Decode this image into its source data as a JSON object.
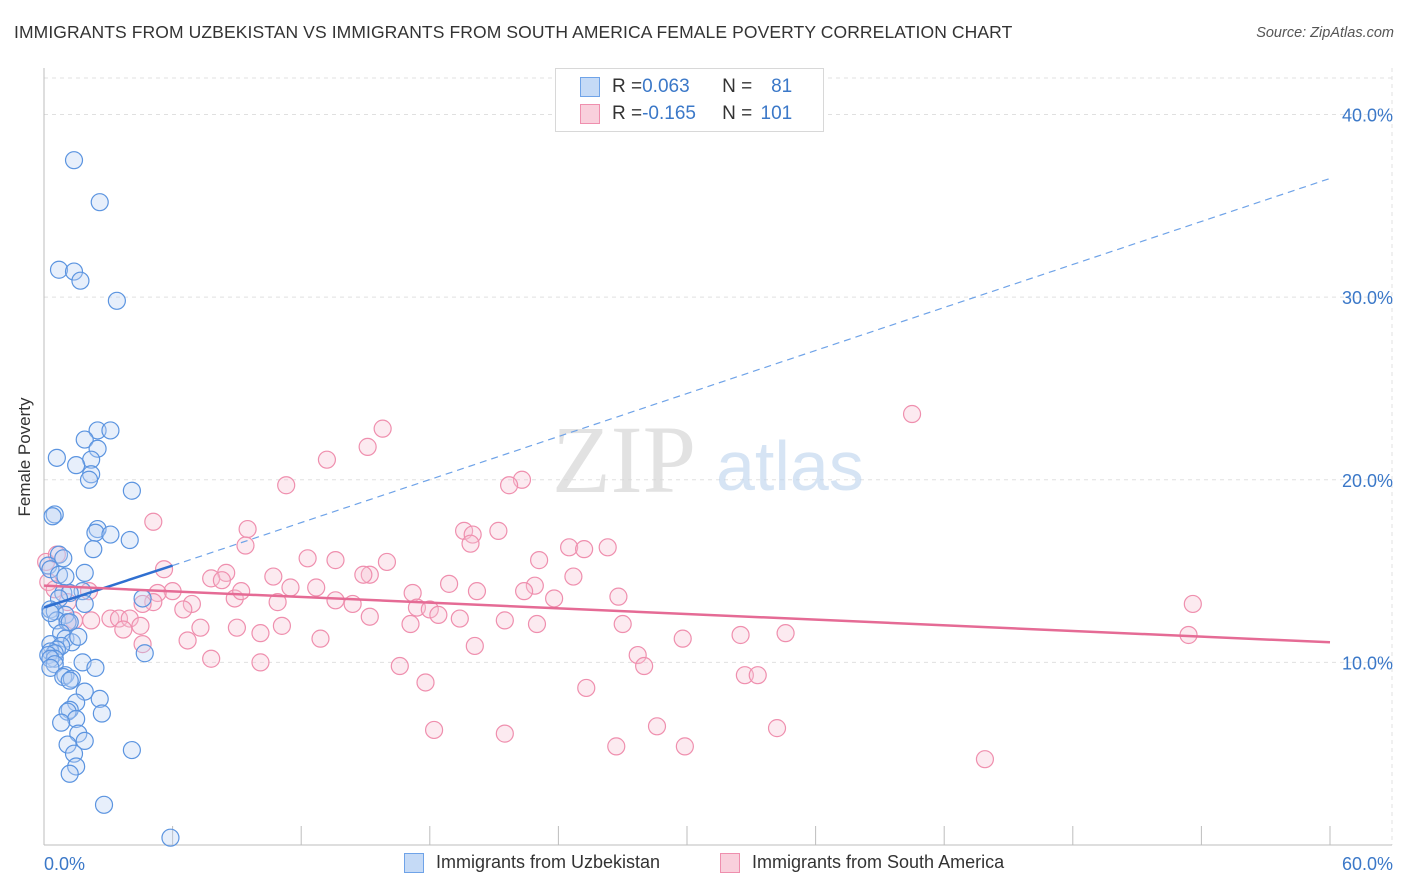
{
  "title": "IMMIGRANTS FROM UZBEKISTAN VS IMMIGRANTS FROM SOUTH AMERICA FEMALE POVERTY CORRELATION CHART",
  "source": "Source: ZipAtlas.com",
  "watermark": {
    "zip": "ZIP",
    "atlas": "atlas"
  },
  "legend": {
    "rows": [
      {
        "r_label": "R = ",
        "r_value": "0.063",
        "n_label": "N = ",
        "n_value": "81",
        "color": "#6fa3e8"
      },
      {
        "r_label": "R = ",
        "r_value": "-0.165",
        "n_label": "N = ",
        "n_value": "101",
        "color": "#ef8fae"
      }
    ]
  },
  "chart_data": {
    "type": "scatter",
    "title": "IMMIGRANTS FROM UZBEKISTAN VS IMMIGRANTS FROM SOUTH AMERICA FEMALE POVERTY CORRELATION CHART",
    "xlabel": "",
    "ylabel": "Female Poverty",
    "xlim": [
      0,
      60
    ],
    "ylim": [
      0,
      42
    ],
    "x_tick_labels": [
      "0.0%",
      "60.0%"
    ],
    "y_ticks": [
      10,
      20,
      30,
      40
    ],
    "y_tick_labels": [
      "10.0%",
      "20.0%",
      "30.0%",
      "40.0%"
    ],
    "grid": true,
    "legend_position": "top-center",
    "series": [
      {
        "name": "Immigrants from Uzbekistan",
        "color": "#6fa3e8",
        "trend": {
          "x": [
            0,
            6.0
          ],
          "y": [
            13.0,
            15.3
          ],
          "extended_to": [
            60,
            36.5
          ]
        },
        "points": [
          [
            1.4,
            37.5
          ],
          [
            2.6,
            35.2
          ],
          [
            0.7,
            31.5
          ],
          [
            1.4,
            31.4
          ],
          [
            1.7,
            30.9
          ],
          [
            3.4,
            29.8
          ],
          [
            2.5,
            22.7
          ],
          [
            3.1,
            22.7
          ],
          [
            1.9,
            22.2
          ],
          [
            2.5,
            21.7
          ],
          [
            0.6,
            21.2
          ],
          [
            2.2,
            21.1
          ],
          [
            1.5,
            20.8
          ],
          [
            2.2,
            20.3
          ],
          [
            2.1,
            20.0
          ],
          [
            4.1,
            19.4
          ],
          [
            0.5,
            18.1
          ],
          [
            0.4,
            18.0
          ],
          [
            2.5,
            17.3
          ],
          [
            2.4,
            17.1
          ],
          [
            3.1,
            17.0
          ],
          [
            4.0,
            16.7
          ],
          [
            2.3,
            16.2
          ],
          [
            0.7,
            15.9
          ],
          [
            0.9,
            15.7
          ],
          [
            0.2,
            15.3
          ],
          [
            0.3,
            15.1
          ],
          [
            1.9,
            14.9
          ],
          [
            0.7,
            14.8
          ],
          [
            1.0,
            14.7
          ],
          [
            1.8,
            13.9
          ],
          [
            0.9,
            13.8
          ],
          [
            1.2,
            13.8
          ],
          [
            0.7,
            13.5
          ],
          [
            4.6,
            13.5
          ],
          [
            1.9,
            13.2
          ],
          [
            0.3,
            12.9
          ],
          [
            0.5,
            12.8
          ],
          [
            1.0,
            12.6
          ],
          [
            0.6,
            12.3
          ],
          [
            1.1,
            12.2
          ],
          [
            1.2,
            12.2
          ],
          [
            0.8,
            11.6
          ],
          [
            1.0,
            11.3
          ],
          [
            1.3,
            11.1
          ],
          [
            0.3,
            11.0
          ],
          [
            0.8,
            10.9
          ],
          [
            0.6,
            10.7
          ],
          [
            0.3,
            10.6
          ],
          [
            0.5,
            10.5
          ],
          [
            4.7,
            10.5
          ],
          [
            0.2,
            10.4
          ],
          [
            0.5,
            10.2
          ],
          [
            0.3,
            10.2
          ],
          [
            1.8,
            10.0
          ],
          [
            0.5,
            9.9
          ],
          [
            0.3,
            9.7
          ],
          [
            2.4,
            9.7
          ],
          [
            1.0,
            9.3
          ],
          [
            0.9,
            9.2
          ],
          [
            1.3,
            9.1
          ],
          [
            1.2,
            9.0
          ],
          [
            1.9,
            8.4
          ],
          [
            2.6,
            8.0
          ],
          [
            1.5,
            7.8
          ],
          [
            1.2,
            7.4
          ],
          [
            1.1,
            7.3
          ],
          [
            2.7,
            7.2
          ],
          [
            1.5,
            6.9
          ],
          [
            0.8,
            6.7
          ],
          [
            1.6,
            6.1
          ],
          [
            1.9,
            5.7
          ],
          [
            1.1,
            5.5
          ],
          [
            4.1,
            5.2
          ],
          [
            1.4,
            5.0
          ],
          [
            1.5,
            4.3
          ],
          [
            1.2,
            3.9
          ],
          [
            2.8,
            2.2
          ],
          [
            5.9,
            0.4
          ],
          [
            0.3,
            12.7
          ],
          [
            1.6,
            11.4
          ]
        ]
      },
      {
        "name": "Immigrants from South America",
        "color": "#ef8fae",
        "trend": {
          "x": [
            0,
            60
          ],
          "y": [
            14.2,
            11.1
          ]
        },
        "points": [
          [
            40.5,
            23.6
          ],
          [
            15.8,
            22.8
          ],
          [
            15.1,
            21.8
          ],
          [
            13.2,
            21.1
          ],
          [
            22.3,
            20.0
          ],
          [
            11.3,
            19.7
          ],
          [
            21.7,
            19.7
          ],
          [
            5.1,
            17.7
          ],
          [
            9.5,
            17.3
          ],
          [
            19.6,
            17.2
          ],
          [
            21.2,
            17.2
          ],
          [
            20.0,
            17.0
          ],
          [
            19.9,
            16.5
          ],
          [
            9.4,
            16.4
          ],
          [
            24.5,
            16.3
          ],
          [
            26.3,
            16.3
          ],
          [
            25.2,
            16.2
          ],
          [
            12.3,
            15.7
          ],
          [
            13.6,
            15.6
          ],
          [
            23.1,
            15.6
          ],
          [
            16.0,
            15.5
          ],
          [
            0.1,
            15.5
          ],
          [
            0.6,
            15.9
          ],
          [
            5.6,
            15.1
          ],
          [
            8.5,
            14.9
          ],
          [
            15.2,
            14.8
          ],
          [
            14.9,
            14.8
          ],
          [
            10.7,
            14.7
          ],
          [
            24.7,
            14.7
          ],
          [
            7.8,
            14.6
          ],
          [
            8.3,
            14.5
          ],
          [
            0.2,
            14.4
          ],
          [
            18.9,
            14.3
          ],
          [
            22.9,
            14.2
          ],
          [
            11.5,
            14.1
          ],
          [
            12.7,
            14.1
          ],
          [
            6.0,
            13.9
          ],
          [
            5.3,
            13.8
          ],
          [
            2.1,
            13.9
          ],
          [
            17.2,
            13.8
          ],
          [
            20.2,
            13.9
          ],
          [
            22.4,
            13.9
          ],
          [
            26.8,
            13.6
          ],
          [
            8.9,
            13.5
          ],
          [
            23.8,
            13.5
          ],
          [
            13.6,
            13.4
          ],
          [
            10.9,
            13.3
          ],
          [
            5.1,
            13.3
          ],
          [
            6.9,
            13.2
          ],
          [
            1.1,
            13.3
          ],
          [
            53.6,
            13.2
          ],
          [
            4.6,
            13.2
          ],
          [
            17.4,
            13.0
          ],
          [
            18.0,
            12.9
          ],
          [
            6.5,
            12.9
          ],
          [
            18.4,
            12.6
          ],
          [
            15.2,
            12.5
          ],
          [
            3.1,
            12.4
          ],
          [
            3.5,
            12.4
          ],
          [
            4.0,
            12.4
          ],
          [
            21.5,
            12.3
          ],
          [
            2.2,
            12.3
          ],
          [
            1.4,
            12.3
          ],
          [
            1.1,
            12.2
          ],
          [
            17.1,
            12.1
          ],
          [
            27.0,
            12.1
          ],
          [
            23.0,
            12.1
          ],
          [
            11.1,
            12.0
          ],
          [
            9.0,
            11.9
          ],
          [
            7.3,
            11.9
          ],
          [
            3.7,
            11.8
          ],
          [
            34.6,
            11.6
          ],
          [
            32.5,
            11.5
          ],
          [
            10.1,
            11.6
          ],
          [
            53.4,
            11.5
          ],
          [
            29.8,
            11.3
          ],
          [
            12.9,
            11.3
          ],
          [
            6.7,
            11.2
          ],
          [
            4.6,
            11.0
          ],
          [
            20.1,
            10.9
          ],
          [
            27.7,
            10.4
          ],
          [
            7.8,
            10.2
          ],
          [
            10.1,
            10.0
          ],
          [
            16.6,
            9.8
          ],
          [
            28.0,
            9.8
          ],
          [
            32.7,
            9.3
          ],
          [
            33.3,
            9.3
          ],
          [
            17.8,
            8.9
          ],
          [
            25.3,
            8.6
          ],
          [
            28.6,
            6.5
          ],
          [
            34.2,
            6.4
          ],
          [
            18.2,
            6.3
          ],
          [
            21.5,
            6.1
          ],
          [
            26.7,
            5.4
          ],
          [
            29.9,
            5.4
          ],
          [
            43.9,
            4.7
          ],
          [
            9.2,
            13.9
          ],
          [
            14.4,
            13.2
          ],
          [
            4.5,
            12.0
          ],
          [
            19.4,
            12.4
          ],
          [
            0.5,
            14.0
          ]
        ]
      }
    ]
  },
  "bottom_legend": {
    "items": [
      {
        "label": "Immigrants from Uzbekistan",
        "color": "#6fa3e8"
      },
      {
        "label": "Immigrants from South America",
        "color": "#ef8fae"
      }
    ]
  }
}
